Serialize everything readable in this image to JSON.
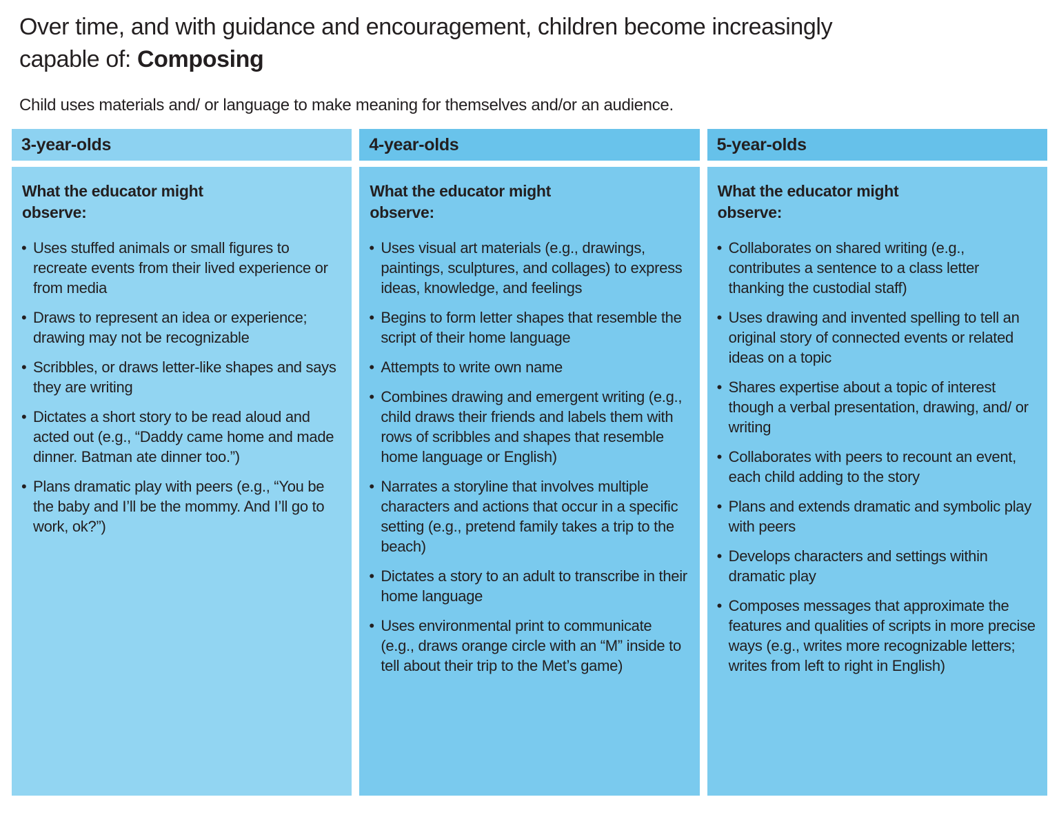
{
  "title": {
    "line1": "Over time, and with guidance and encouragement, children become increasingly",
    "line2_regular": "capable of: ",
    "line2_bold": "Composing"
  },
  "subtitle": "Child uses materials and/ or language to make meaning for themselves and/or an audience.",
  "table": {
    "columns": [
      {
        "header": "3-year-olds",
        "observe_heading": "What the educator might observe:",
        "bullets": [
          "Uses stuffed animals or small figures to recreate events from their lived experience or from media",
          "Draws to represent an idea or experience; drawing may not be recognizable",
          "Scribbles, or draws letter-like shapes and says they are writing",
          "Dictates a short story to be read aloud and acted out (e.g., “Daddy came home and made dinner. Batman ate dinner too.”)",
          "Plans dramatic play with peers (e.g., “You be the baby and I’ll be the mommy. And I’ll go to work, ok?”)"
        ]
      },
      {
        "header": "4-year-olds",
        "observe_heading": "What the educator might observe:",
        "bullets": [
          "Uses visual art materials (e.g., drawings, paintings, sculptures, and collages) to express ideas, knowledge, and feelings",
          "Begins to form letter shapes that resemble the script of their home language",
          "Attempts to write own name",
          "Combines drawing and emergent writing (e.g., child draws their friends and labels them with rows of scribbles and shapes that resemble home language or English)",
          "Narrates a storyline that involves multiple characters and actions that occur in a specific setting (e.g., pretend family takes a trip to the beach)",
          "Dictates a story to an adult to transcribe in their home language",
          "Uses environmental print to communicate (e.g., draws orange circle with an “M” inside to tell about their trip to the Met’s game)"
        ]
      },
      {
        "header": "5-year-olds",
        "observe_heading": "What the educator might observe:",
        "bullets": [
          "Collaborates on shared writing (e.g., contributes a sentence to a class letter thanking the custodial staff)",
          "Uses drawing and invented spelling to tell an original story of connected events or related ideas on a topic",
          "Shares expertise about a topic of interest though a verbal presentation, drawing, and/ or writing",
          "Collaborates with peers to recount an event, each child adding to the story",
          "Plans and extends dramatic and symbolic play with peers",
          "Develops characters and settings within dramatic play",
          "Composes messages that approximate the features and qualities of scripts in more precise ways (e.g., writes more recognizable letters; writes from left to right in English)"
        ]
      }
    ]
  },
  "icons": {
    "bullet": "•"
  },
  "colors": {
    "background": "#FFFFFF",
    "text": "#231F20",
    "columns": [
      {
        "header_bg": "#8DD2F1",
        "body_bg": "#92D5F2"
      },
      {
        "header_bg": "#69C3EB",
        "body_bg": "#7ACAEE"
      },
      {
        "header_bg": "#66C1EA",
        "body_bg": "#7CCBEE"
      }
    ]
  }
}
